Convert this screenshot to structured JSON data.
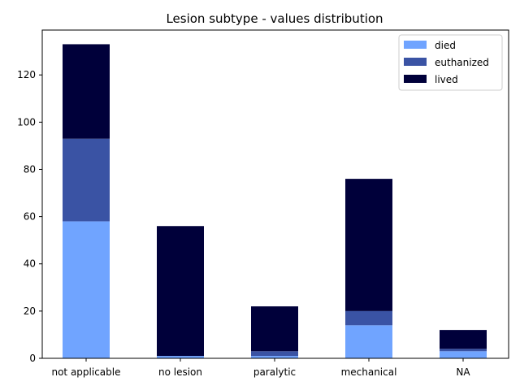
{
  "chart_data": {
    "type": "bar",
    "stacked": true,
    "title": "Lesion subtype - values distribution",
    "xlabel": "",
    "ylabel": "",
    "categories": [
      "not applicable",
      "no lesion",
      "paralytic",
      "mechanical",
      "NA"
    ],
    "series": [
      {
        "name": "died",
        "color": "#70a4ff",
        "values": [
          58,
          1,
          1,
          14,
          3
        ]
      },
      {
        "name": "euthanized",
        "color": "#3a53a4",
        "values": [
          35,
          0,
          2,
          6,
          1
        ]
      },
      {
        "name": "lived",
        "color": "#00003a",
        "values": [
          40,
          55,
          19,
          56,
          8
        ]
      }
    ],
    "ylim": [
      0,
      139
    ],
    "yticks": [
      0,
      20,
      40,
      60,
      80,
      100,
      120
    ],
    "grid": false,
    "legend_position": "top-right"
  }
}
